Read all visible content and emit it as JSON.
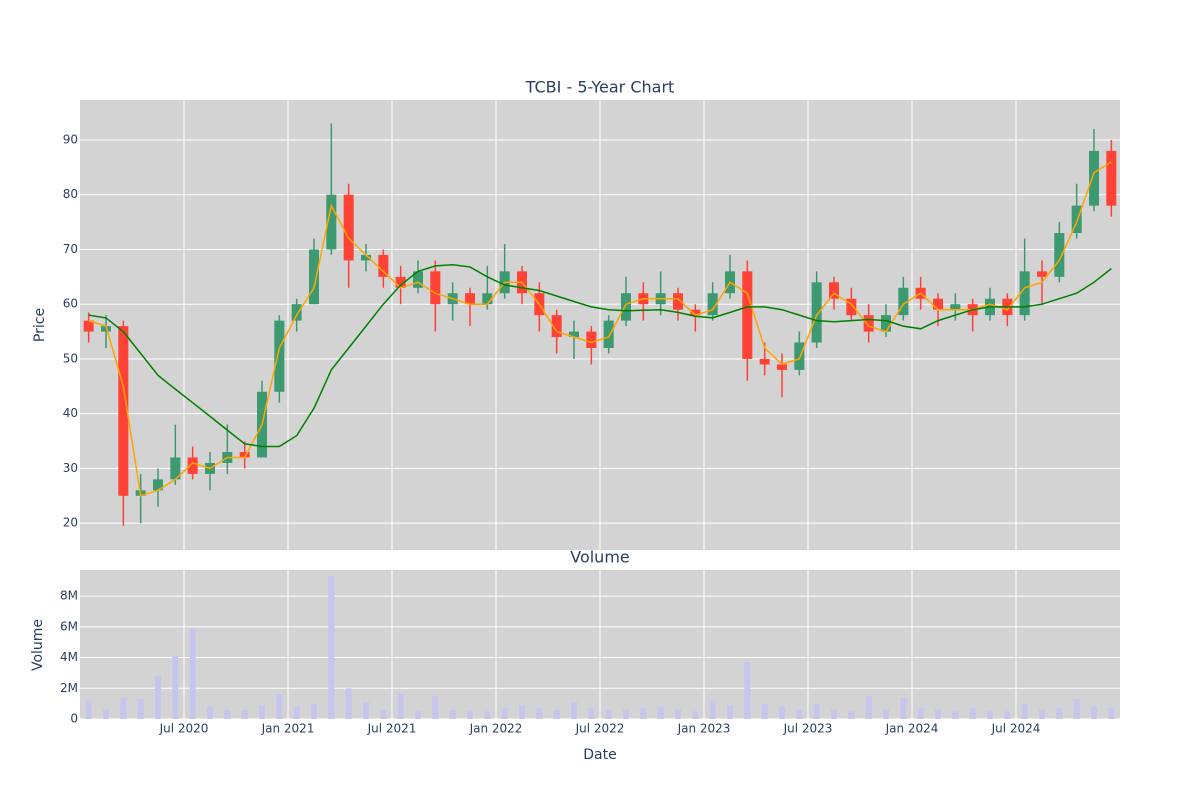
{
  "chart_data": [
    {
      "type": "candlestick",
      "title": "TCBI - 5-Year Chart",
      "y_label": "Price",
      "x": [
        "2020-01",
        "2020-02",
        "2020-03",
        "2020-04",
        "2020-05",
        "2020-06",
        "2020-07",
        "2020-08",
        "2020-09",
        "2020-10",
        "2020-11",
        "2020-12",
        "2021-01",
        "2021-02",
        "2021-03",
        "2021-04",
        "2021-05",
        "2021-06",
        "2021-07",
        "2021-08",
        "2021-09",
        "2021-10",
        "2021-11",
        "2021-12",
        "2022-01",
        "2022-02",
        "2022-03",
        "2022-04",
        "2022-05",
        "2022-06",
        "2022-07",
        "2022-08",
        "2022-09",
        "2022-10",
        "2022-11",
        "2022-12",
        "2023-01",
        "2023-02",
        "2023-03",
        "2023-04",
        "2023-05",
        "2023-06",
        "2023-07",
        "2023-08",
        "2023-09",
        "2023-10",
        "2023-11",
        "2023-12",
        "2024-01",
        "2024-02",
        "2024-03",
        "2024-04",
        "2024-05",
        "2024-06",
        "2024-07",
        "2024-08",
        "2024-09",
        "2024-10",
        "2024-11",
        "2024-12"
      ],
      "open": [
        57,
        55,
        56,
        25,
        26,
        28,
        32,
        29,
        31,
        33,
        32,
        44,
        57,
        60,
        70,
        80,
        68,
        69,
        65,
        63,
        66,
        60,
        62,
        60,
        62,
        66,
        62,
        58,
        54,
        55,
        52,
        57,
        62,
        60,
        62,
        59,
        58,
        62,
        66,
        50,
        49,
        48,
        53,
        64,
        61,
        58,
        55,
        58,
        63,
        61,
        59,
        60,
        58,
        61,
        58,
        66,
        65,
        73,
        78,
        88
      ],
      "high": [
        58.5,
        58,
        57,
        29,
        30,
        38,
        34,
        33,
        38,
        35,
        46,
        58,
        61,
        72,
        93,
        82,
        71,
        70,
        67,
        68,
        68,
        64,
        63,
        67,
        71,
        67,
        64,
        59,
        57,
        56,
        58,
        65,
        64,
        66,
        63,
        60,
        64,
        69,
        68,
        53,
        51,
        55,
        66,
        65,
        63,
        60,
        60,
        65,
        65,
        62,
        62,
        61,
        63,
        62,
        72,
        68,
        75,
        82,
        92,
        90
      ],
      "low": [
        53,
        52,
        19.5,
        20,
        23,
        27,
        28,
        26,
        29,
        30,
        32,
        42,
        55,
        60,
        69,
        63,
        66,
        63,
        60,
        62,
        55,
        57,
        56,
        59,
        61,
        60,
        55,
        51,
        50,
        49,
        51,
        56,
        57,
        58,
        57,
        55,
        57,
        61,
        46,
        47,
        43,
        47,
        52,
        59,
        57,
        53,
        54,
        57,
        59,
        56,
        57,
        55,
        57,
        56,
        57,
        60,
        64,
        72,
        77,
        76
      ],
      "close": [
        55,
        56,
        25,
        26,
        28,
        32,
        29,
        31,
        33,
        32,
        44,
        57,
        60,
        70,
        80,
        68,
        69,
        65,
        63,
        66,
        60,
        62,
        60,
        62,
        66,
        62,
        58,
        54,
        55,
        52,
        57,
        62,
        60,
        62,
        59,
        58,
        62,
        66,
        50,
        49,
        48,
        53,
        64,
        61,
        58,
        55,
        58,
        63,
        61,
        59,
        60,
        58,
        61,
        58,
        66,
        65,
        73,
        78,
        88,
        78
      ],
      "increasing_color": "#3d9970",
      "decreasing_color": "#ff4136",
      "series": [
        {
          "color": "#ffa500",
          "values": [
            57,
            56,
            45,
            25,
            26,
            28,
            31,
            30,
            32,
            32,
            38,
            52,
            58,
            63,
            78,
            72,
            69,
            66,
            63,
            64,
            62,
            61,
            60,
            60,
            64,
            64,
            60,
            55,
            54,
            53,
            54,
            60,
            61,
            61,
            61,
            58,
            59,
            64,
            62,
            52,
            49,
            50,
            58,
            62,
            60,
            56,
            55,
            60,
            62,
            59,
            59,
            59,
            60,
            59,
            63,
            64,
            68,
            75,
            84,
            86
          ]
        },
        {
          "color": "#008000",
          "values": [
            58,
            57.5,
            55,
            51,
            47,
            44.5,
            42,
            39.5,
            37,
            34.5,
            34,
            34,
            36,
            41,
            48,
            52,
            56,
            60,
            63.5,
            66,
            67,
            67.2,
            66.8,
            65,
            63.5,
            63,
            62.5,
            61.5,
            60.5,
            59.5,
            59,
            58.8,
            58.9,
            59,
            58.5,
            57.8,
            57.5,
            58.5,
            59.5,
            59.5,
            59,
            58,
            57,
            56.8,
            57,
            57.2,
            57,
            56,
            55.5,
            57,
            58,
            59,
            59.5,
            59.5,
            59.5,
            60,
            61,
            62,
            64,
            66.5
          ]
        }
      ],
      "xlim": [
        "2020-01",
        "2025-01"
      ],
      "xticks": [
        "2020-07",
        "2021-01",
        "2021-07",
        "2022-01",
        "2022-07",
        "2023-01",
        "2023-07",
        "2024-01",
        "2024-07"
      ],
      "ylim": [
        15.1,
        97.3
      ],
      "yticks": [
        20,
        30,
        40,
        50,
        60,
        70,
        80,
        90
      ],
      "grid": true
    },
    {
      "type": "bar",
      "title": "Volume",
      "y_label": "Volume",
      "x_label": "Date",
      "color": "#c5c5ee",
      "x": [
        "2020-01",
        "2020-02",
        "2020-03",
        "2020-04",
        "2020-05",
        "2020-06",
        "2020-07",
        "2020-08",
        "2020-09",
        "2020-10",
        "2020-11",
        "2020-12",
        "2021-01",
        "2021-02",
        "2021-03",
        "2021-04",
        "2021-05",
        "2021-06",
        "2021-07",
        "2021-08",
        "2021-09",
        "2021-10",
        "2021-11",
        "2021-12",
        "2022-01",
        "2022-02",
        "2022-03",
        "2022-04",
        "2022-05",
        "2022-06",
        "2022-07",
        "2022-08",
        "2022-09",
        "2022-10",
        "2022-11",
        "2022-12",
        "2023-01",
        "2023-02",
        "2023-03",
        "2023-04",
        "2023-05",
        "2023-06",
        "2023-07",
        "2023-08",
        "2023-09",
        "2023-10",
        "2023-11",
        "2023-12",
        "2024-01",
        "2024-02",
        "2024-03",
        "2024-04",
        "2024-05",
        "2024-06",
        "2024-07",
        "2024-08",
        "2024-09",
        "2024-10",
        "2024-11",
        "2024-12"
      ],
      "values": [
        1200000,
        600000,
        1400000,
        1300000,
        2800000,
        4100000,
        5900000,
        800000,
        600000,
        600000,
        900000,
        1600000,
        800000,
        1000000,
        9300000,
        2000000,
        1100000,
        600000,
        1700000,
        500000,
        1500000,
        600000,
        500000,
        500000,
        700000,
        900000,
        700000,
        600000,
        1100000,
        700000,
        600000,
        600000,
        700000,
        800000,
        600000,
        500000,
        1200000,
        900000,
        3700000,
        1000000,
        800000,
        600000,
        1000000,
        600000,
        500000,
        1500000,
        600000,
        1400000,
        700000,
        600000,
        500000,
        700000,
        500000,
        500000,
        1000000,
        600000,
        700000,
        1300000,
        800000,
        700000
      ],
      "xlim": [
        "2020-01",
        "2025-01"
      ],
      "xticks": [
        {
          "value": "2020-07",
          "label": "Jul 2020"
        },
        {
          "value": "2021-01",
          "label": "Jan 2021"
        },
        {
          "value": "2021-07",
          "label": "Jul 2021"
        },
        {
          "value": "2022-01",
          "label": "Jan 2022"
        },
        {
          "value": "2022-07",
          "label": "Jul 2022"
        },
        {
          "value": "2023-01",
          "label": "Jan 2023"
        },
        {
          "value": "2023-07",
          "label": "Jul 2023"
        },
        {
          "value": "2024-01",
          "label": "Jan 2024"
        },
        {
          "value": "2024-07",
          "label": "Jul 2024"
        }
      ],
      "ylim": [
        0,
        9700000
      ],
      "yticks": [
        0,
        {
          "value": 2000000,
          "label": "2M"
        },
        {
          "value": 4000000,
          "label": "4M"
        },
        {
          "value": 6000000,
          "label": "6M"
        },
        {
          "value": 8000000,
          "label": "8M"
        }
      ],
      "grid": true
    }
  ]
}
